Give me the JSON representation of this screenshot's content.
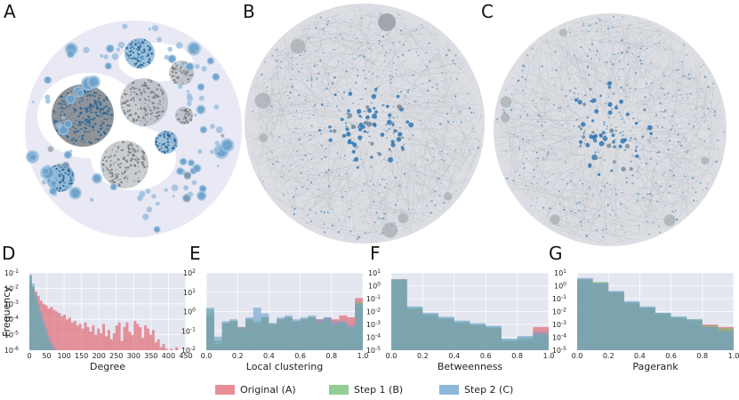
{
  "panel_letters": {
    "A": "A",
    "B": "B",
    "C": "C",
    "D": "D",
    "E": "E",
    "F": "F",
    "G": "G"
  },
  "colors": {
    "original": "#e06a73",
    "step1": "#6dbd70",
    "step2": "#6a9fcb",
    "overlap": "#3d7f84",
    "plot_bg": "#e4e6f0",
    "network_bg": "#e8e9f4",
    "node_blue": "#4f8fc0",
    "node_gray": "#9ea4aa"
  },
  "legend": [
    {
      "key": "original",
      "label": "Original (A)"
    },
    {
      "key": "step1",
      "label": "Step 1 (B)"
    },
    {
      "key": "step2",
      "label": "Step 2 (C)"
    }
  ],
  "chart_data": [
    {
      "id": "D",
      "type": "bar",
      "xlabel": "Degree",
      "ylabel": "Frequency",
      "log_y": true,
      "grid": true,
      "xlim": [
        0,
        450
      ],
      "ylim": [
        1e-06,
        0.1
      ],
      "xticks": [
        0,
        50,
        100,
        150,
        200,
        250,
        300,
        350,
        400,
        450
      ],
      "xticklabels": [
        "0",
        "50",
        "100",
        "150",
        "200",
        "250",
        "300",
        "350",
        "400",
        "450"
      ],
      "ytick_exponents": [
        -6,
        -5,
        -4,
        -3,
        -2,
        -1
      ],
      "bin_width": 7.5,
      "series": [
        {
          "key": "original",
          "exps": [
            -1.6,
            -1.9,
            -2.2,
            -2.5,
            -2.8,
            -3.0,
            -3.1,
            -3.3,
            -3.2,
            -3.4,
            -3.5,
            -3.6,
            -3.8,
            -3.7,
            -4.0,
            -3.9,
            -4.2,
            -4.1,
            -4.4,
            -4.3,
            -4.6,
            -4.2,
            -4.5,
            -4.8,
            -4.4,
            -5.0,
            -4.6,
            -4.9,
            -4.3,
            -5.1,
            -4.7,
            -5.3,
            -4.9,
            -4.4,
            -4.2,
            -5.4,
            -4.5,
            -4.2,
            -4.8,
            -5.0,
            -4.1,
            -4.3,
            -4.5,
            -5.2,
            -4.4,
            -4.6,
            -5.0,
            -4.7,
            -5.5,
            -5.3,
            -5.8,
            -5.6,
            -5.9,
            -6.0,
            -5.9,
            -6.0,
            -5.8,
            -6.0
          ]
        },
        {
          "key": "step1",
          "exps": [
            -1.2,
            -1.9,
            -2.6,
            -3.2,
            -3.8,
            -4.4,
            -5.0,
            -5.5,
            -5.9,
            -6.0
          ]
        },
        {
          "key": "step2",
          "exps": [
            -1.1,
            -1.7,
            -2.4,
            -3.0,
            -3.5,
            -4.1,
            -4.6,
            -5.1,
            -5.5,
            -5.8,
            -6.0
          ]
        }
      ]
    },
    {
      "id": "E",
      "type": "bar",
      "xlabel": "Local clustering",
      "ylabel": "",
      "log_y": true,
      "grid": true,
      "xlim": [
        0,
        1
      ],
      "ylim": [
        0.01,
        100
      ],
      "xticks": [
        0,
        0.2,
        0.4,
        0.6,
        0.8,
        1.0
      ],
      "xticklabels": [
        "0.0",
        "0.2",
        "0.4",
        "0.6",
        "0.8",
        "1.0"
      ],
      "ytick_exponents": [
        -2,
        -1,
        0,
        1,
        2
      ],
      "bin_width": 0.05,
      "series": [
        {
          "key": "original",
          "exps": [
            -0.2,
            -1.7,
            -0.6,
            -0.5,
            -0.8,
            -0.4,
            -0.6,
            -0.3,
            -0.7,
            -0.4,
            -0.3,
            -0.5,
            -0.4,
            -0.3,
            -0.4,
            -0.3,
            -0.4,
            -0.2,
            -0.3,
            0.7
          ]
        },
        {
          "key": "step1",
          "exps": [
            0.1,
            -1.5,
            -0.6,
            -0.5,
            -0.9,
            -0.4,
            -0.5,
            -0.3,
            -0.6,
            -0.4,
            -0.3,
            -0.5,
            -0.4,
            -0.3,
            -0.6,
            -0.4,
            -0.7,
            -0.6,
            -0.9,
            0.5
          ]
        },
        {
          "key": "step2",
          "exps": [
            0.2,
            -1.3,
            -0.5,
            -0.4,
            -0.8,
            -0.3,
            0.2,
            -0.1,
            -0.6,
            -0.3,
            -0.2,
            -0.4,
            -0.3,
            -0.2,
            -0.4,
            -0.3,
            -0.5,
            -0.5,
            -0.7,
            0.4
          ]
        }
      ]
    },
    {
      "id": "F",
      "type": "bar",
      "xlabel": "Betweenness",
      "ylabel": "",
      "log_y": true,
      "grid": true,
      "xlim": [
        0,
        1
      ],
      "ylim": [
        1e-05,
        10
      ],
      "xticks": [
        0,
        0.2,
        0.4,
        0.6,
        0.8,
        1.0
      ],
      "xticklabels": [
        "0.0",
        "0.2",
        "0.4",
        "0.6",
        "0.8",
        "1.0"
      ],
      "ytick_exponents": [
        -5,
        -4,
        -3,
        -2,
        -1,
        0,
        1
      ],
      "bin_width": 0.1,
      "series": [
        {
          "key": "original",
          "exps": [
            0.5,
            -1.8,
            -2.3,
            -2.6,
            -2.9,
            -3.1,
            -3.3,
            -4.3,
            -4.2,
            -3.2
          ]
        },
        {
          "key": "step1",
          "exps": [
            0.5,
            -1.7,
            -2.2,
            -2.5,
            -2.8,
            -3.0,
            -3.2,
            -4.2,
            -4.0,
            -3.8
          ]
        },
        {
          "key": "step2",
          "exps": [
            0.5,
            -1.6,
            -2.1,
            -2.4,
            -2.7,
            -2.9,
            -3.1,
            -4.1,
            -3.9,
            -3.6
          ]
        }
      ]
    },
    {
      "id": "G",
      "type": "bar",
      "xlabel": "Pagerank",
      "ylabel": "",
      "log_y": true,
      "grid": true,
      "xlim": [
        0,
        1
      ],
      "ylim": [
        1e-05,
        10
      ],
      "xticks": [
        0,
        0.2,
        0.4,
        0.6,
        0.8,
        1.0
      ],
      "xticklabels": [
        "0.0",
        "0.2",
        "0.4",
        "0.6",
        "0.8",
        "1.0"
      ],
      "ytick_exponents": [
        -5,
        -4,
        -3,
        -2,
        -1,
        0,
        1
      ],
      "bin_width": 0.1,
      "series": [
        {
          "key": "original",
          "exps": [
            0.5,
            0.2,
            -0.5,
            -1.3,
            -1.7,
            -2.2,
            -2.5,
            -2.7,
            -3.0,
            -3.2
          ]
        },
        {
          "key": "step1",
          "exps": [
            0.5,
            0.3,
            -0.5,
            -1.3,
            -1.7,
            -2.1,
            -2.4,
            -2.6,
            -3.1,
            -3.3
          ]
        },
        {
          "key": "step2",
          "exps": [
            0.6,
            0.2,
            -0.4,
            -1.2,
            -1.6,
            -2.1,
            -2.4,
            -2.6,
            -3.2,
            -3.5
          ]
        }
      ]
    }
  ]
}
